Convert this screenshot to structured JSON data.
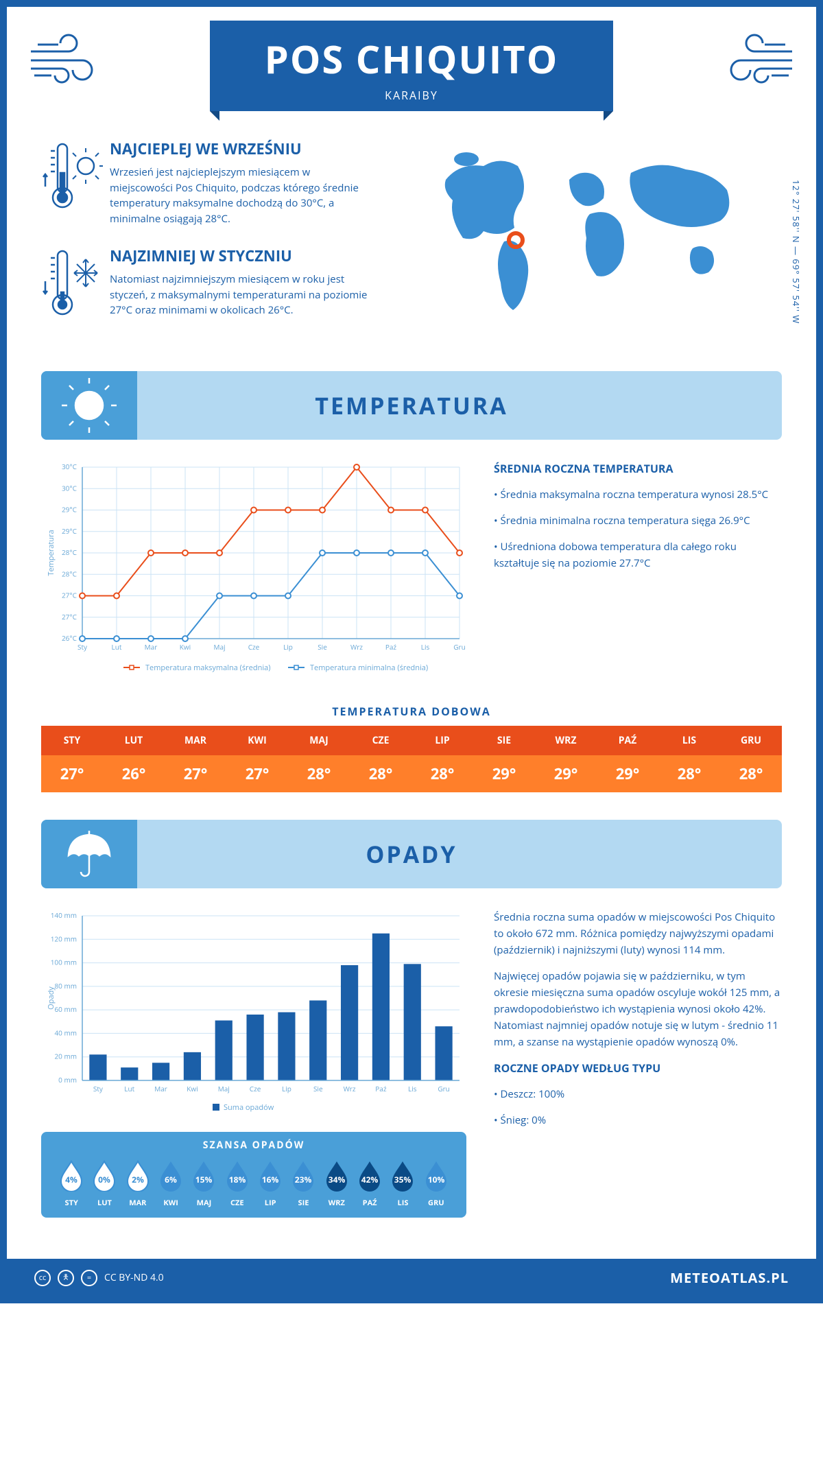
{
  "header": {
    "title": "POS CHIQUITO",
    "region": "KARAIBY"
  },
  "coords": "12° 27' 58'' N — 69° 57' 54'' W",
  "warm": {
    "title": "NAJCIEPLEJ WE WRZEŚNIU",
    "text": "Wrzesień jest najcieplejszym miesiącem w miejscowości Pos Chiquito, podczas którego średnie temperatury maksymalne dochodzą do 30°C, a minimalne osiągają 28°C."
  },
  "cold": {
    "title": "NAJZIMNIEJ W STYCZNIU",
    "text": "Natomiast najzimniejszym miesiącem w roku jest styczeń, z maksymalnymi temperaturami na poziomie 27°C oraz minimami w okolicach 26°C."
  },
  "temperature_section": {
    "title": "TEMPERATURA",
    "chart": {
      "type": "line",
      "months": [
        "Sty",
        "Lut",
        "Mar",
        "Kwi",
        "Maj",
        "Cze",
        "Lip",
        "Sie",
        "Wrz",
        "Paź",
        "Lis",
        "Gru"
      ],
      "max_series": {
        "label": "Temperatura maksymalna (średnia)",
        "color": "#e94e1b",
        "values": [
          27,
          27,
          28,
          28,
          28,
          29,
          29,
          29,
          30,
          29,
          29,
          28
        ]
      },
      "min_series": {
        "label": "Temperatura minimalna (średnia)",
        "color": "#3b8fd3",
        "values": [
          26,
          26,
          26,
          26,
          27,
          27,
          27,
          28,
          28,
          28,
          28,
          27
        ]
      },
      "ylabel": "Temperatura",
      "ylim": [
        26,
        30
      ],
      "ytick_step": 0.5,
      "grid_color": "#cbe3f5",
      "axis_color": "#6aa8d6",
      "label_fontsize": 10,
      "axis_fontsize": 11
    },
    "summary": {
      "title": "ŚREDNIA ROCZNA TEMPERATURA",
      "b1": "• Średnia maksymalna roczna temperatura wynosi 28.5°C",
      "b2": "• Średnia minimalna roczna temperatura sięga 26.9°C",
      "b3": "• Uśredniona dobowa temperatura dla całego roku kształtuje się na poziomie 27.7°C"
    },
    "daily": {
      "title": "TEMPERATURA DOBOWA",
      "months": [
        "STY",
        "LUT",
        "MAR",
        "KWI",
        "MAJ",
        "CZE",
        "LIP",
        "SIE",
        "WRZ",
        "PAŹ",
        "LIS",
        "GRU"
      ],
      "values": [
        "27°",
        "26°",
        "27°",
        "27°",
        "28°",
        "28°",
        "28°",
        "29°",
        "29°",
        "29°",
        "28°",
        "28°"
      ],
      "header_bg": "#e94e1b",
      "row_bg": "#ff7f2a",
      "text_color": "#ffffff"
    }
  },
  "rain_section": {
    "title": "OPADY",
    "chart": {
      "type": "bar",
      "months": [
        "Sty",
        "Lut",
        "Mar",
        "Kwi",
        "Maj",
        "Cze",
        "Lip",
        "Sie",
        "Wrz",
        "Paź",
        "Lis",
        "Gru"
      ],
      "values": [
        22,
        11,
        15,
        24,
        51,
        56,
        58,
        68,
        98,
        125,
        99,
        46
      ],
      "ylabel": "Opady",
      "legend": "Suma opadów",
      "bar_color": "#1b5fa8",
      "ylim": [
        0,
        140
      ],
      "ytick_step": 20,
      "grid_color": "#cbe3f5",
      "axis_color": "#6aa8d6",
      "label_fontsize": 10,
      "bar_width": 0.55
    },
    "summary": {
      "p1": "Średnia roczna suma opadów w miejscowości Pos Chiquito to około 672 mm. Różnica pomiędzy najwyższymi opadami (październik) i najniższymi (luty) wynosi 114 mm.",
      "p2": "Najwięcej opadów pojawia się w październiku, w tym okresie miesięczna suma opadów oscyluje wokół 125 mm, a prawdopodobieństwo ich wystąpienia wynosi około 42%. Natomiast najmniej opadów notuje się w lutym - średnio 11 mm, a szanse na wystąpienie opadów wynoszą 0%.",
      "type_title": "ROCZNE OPADY WEDŁUG TYPU",
      "type_rain": "• Deszcz: 100%",
      "type_snow": "• Śnieg: 0%"
    },
    "chance": {
      "title": "SZANSA OPADÓW",
      "months": [
        "STY",
        "LUT",
        "MAR",
        "KWI",
        "MAJ",
        "CZE",
        "LIP",
        "SIE",
        "WRZ",
        "PAŹ",
        "LIS",
        "GRU"
      ],
      "values": [
        4,
        0,
        2,
        6,
        15,
        18,
        16,
        23,
        34,
        42,
        35,
        10
      ],
      "colors": {
        "empty_fill": "#ffffff",
        "empty_text": "#3b8fd3",
        "low_fill": "#3b8fd3",
        "low_text": "#ffffff",
        "high_fill": "#0a4a85",
        "high_text": "#ffffff",
        "threshold_empty": 5,
        "threshold_high": 30
      }
    }
  },
  "footer": {
    "license": "CC BY-ND 4.0",
    "brand": "METEOATLAS.PL"
  },
  "palette": {
    "primary": "#1b5fa8",
    "light_blue": "#b3d9f2",
    "mid_blue": "#4a9fd8",
    "orange": "#e94e1b",
    "orange_light": "#ff7f2a",
    "marker_red": "#e94e1b"
  }
}
